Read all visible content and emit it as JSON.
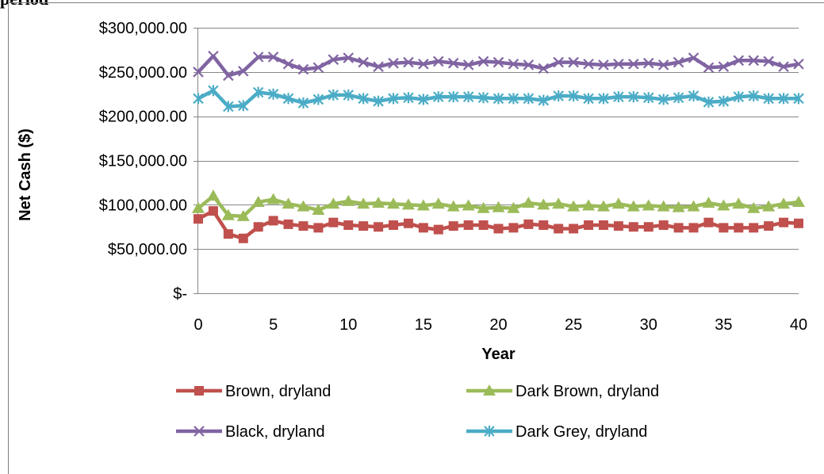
{
  "page": {
    "caption": "period"
  },
  "chart_data": {
    "type": "line",
    "title": "",
    "xlabel": "Year",
    "ylabel": "Net Cash ($)",
    "xlim": [
      0,
      40
    ],
    "ylim": [
      0,
      300000
    ],
    "x_ticks": [
      0,
      5,
      10,
      15,
      20,
      25,
      30,
      35,
      40
    ],
    "x_tick_labels": [
      "0",
      "5",
      "10",
      "15",
      "20",
      "25",
      "30",
      "35",
      "40"
    ],
    "y_ticks": [
      0,
      50000,
      100000,
      150000,
      200000,
      250000,
      300000
    ],
    "y_tick_labels": [
      "$-",
      "$50,000.00",
      "$100,000.00",
      "$150,000.00",
      "$200,000.00",
      "$250,000.00",
      "$300,000.00"
    ],
    "grid": "horizontal",
    "legend_position": "bottom",
    "x": [
      0,
      1,
      2,
      3,
      4,
      5,
      6,
      7,
      8,
      9,
      10,
      11,
      12,
      13,
      14,
      15,
      16,
      17,
      18,
      19,
      20,
      21,
      22,
      23,
      24,
      25,
      26,
      27,
      28,
      29,
      30,
      31,
      32,
      33,
      34,
      35,
      36,
      37,
      38,
      39,
      40
    ],
    "series": [
      {
        "name": "Brown, dryland",
        "color": "#c0504d",
        "marker": "square",
        "values": [
          84000,
          93000,
          67000,
          62000,
          75000,
          82000,
          78000,
          76000,
          74000,
          80000,
          77000,
          76000,
          75000,
          77000,
          79000,
          74000,
          72000,
          76000,
          77000,
          77000,
          73000,
          74000,
          78000,
          77000,
          73000,
          73000,
          77000,
          77000,
          76000,
          75000,
          75000,
          77000,
          74000,
          74000,
          80000,
          74000,
          74000,
          74000,
          76000,
          80000,
          79000
        ]
      },
      {
        "name": "Dark Brown, dryland",
        "color": "#9bbb59",
        "marker": "triangle",
        "values": [
          96000,
          110000,
          88000,
          87000,
          103000,
          106000,
          101000,
          98000,
          94000,
          101000,
          104000,
          101000,
          102000,
          101000,
          100000,
          99000,
          101000,
          98000,
          99000,
          96000,
          97000,
          96000,
          102000,
          100000,
          101000,
          98000,
          99000,
          98000,
          101000,
          98000,
          99000,
          98000,
          97000,
          98000,
          102000,
          99000,
          101000,
          96000,
          98000,
          101000,
          103000
        ]
      },
      {
        "name": "Black, dryland",
        "color": "#8064a2",
        "marker": "x",
        "values": [
          250000,
          268000,
          246000,
          251000,
          267000,
          267000,
          259000,
          253000,
          255000,
          264000,
          266000,
          261000,
          256000,
          260000,
          261000,
          259000,
          262000,
          260000,
          258000,
          262000,
          261000,
          259000,
          258000,
          254000,
          261000,
          261000,
          259000,
          258000,
          259000,
          259000,
          260000,
          258000,
          261000,
          266000,
          255000,
          256000,
          263000,
          263000,
          262000,
          256000,
          259000
        ]
      },
      {
        "name": "Dark Grey, dryland",
        "color": "#4bacc6",
        "marker": "asterisk",
        "values": [
          220000,
          229000,
          211000,
          212000,
          227000,
          225000,
          220000,
          215000,
          219000,
          224000,
          224000,
          220000,
          217000,
          220000,
          221000,
          219000,
          222000,
          222000,
          222000,
          221000,
          220000,
          220000,
          220000,
          218000,
          223000,
          223000,
          220000,
          220000,
          222000,
          222000,
          221000,
          219000,
          221000,
          223000,
          216000,
          217000,
          222000,
          223000,
          220000,
          220000,
          220000
        ]
      }
    ]
  }
}
